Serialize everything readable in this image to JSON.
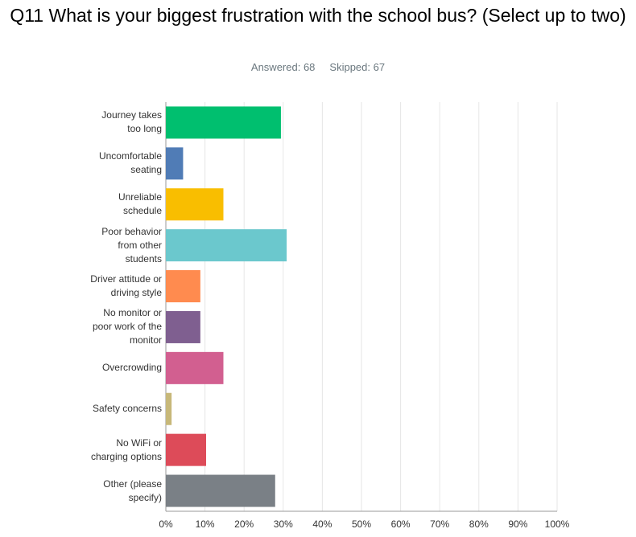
{
  "chart_data": {
    "type": "hbar",
    "title": "Q11 What is your biggest frustration with the school bus? (Select up to two)",
    "answered": "Answered: 68",
    "skipped": "Skipped: 67",
    "categories": [
      "Journey takes too long",
      "Uncomfortable seating",
      "Unreliable schedule",
      "Poor behavior from other students",
      "Driver attitude or driving style",
      "No monitor or poor work of the monitor",
      "Overcrowding",
      "Safety concerns",
      "No WiFi or charging options",
      "Other (please specify)"
    ],
    "values": [
      29.41,
      4.41,
      14.71,
      30.88,
      8.82,
      8.82,
      14.71,
      1.47,
      10.29,
      27.94
    ],
    "colors": [
      "#00bf6f",
      "#507cb6",
      "#f9be00",
      "#6bc8cd",
      "#ff8b4f",
      "#7f5f90",
      "#d25f90",
      "#c7b879",
      "#dd4b59",
      "#7a8086"
    ],
    "xlim": [
      0,
      100
    ],
    "xticks": [
      {
        "value": 0,
        "label": "0%"
      },
      {
        "value": 10,
        "label": "10%"
      },
      {
        "value": 20,
        "label": "20%"
      },
      {
        "value": 30,
        "label": "30%"
      },
      {
        "value": 40,
        "label": "40%"
      },
      {
        "value": 50,
        "label": "50%"
      },
      {
        "value": 60,
        "label": "60%"
      },
      {
        "value": 70,
        "label": "70%"
      },
      {
        "value": 80,
        "label": "80%"
      },
      {
        "value": 90,
        "label": "90%"
      },
      {
        "value": 100,
        "label": "100%"
      }
    ],
    "grid": true
  }
}
